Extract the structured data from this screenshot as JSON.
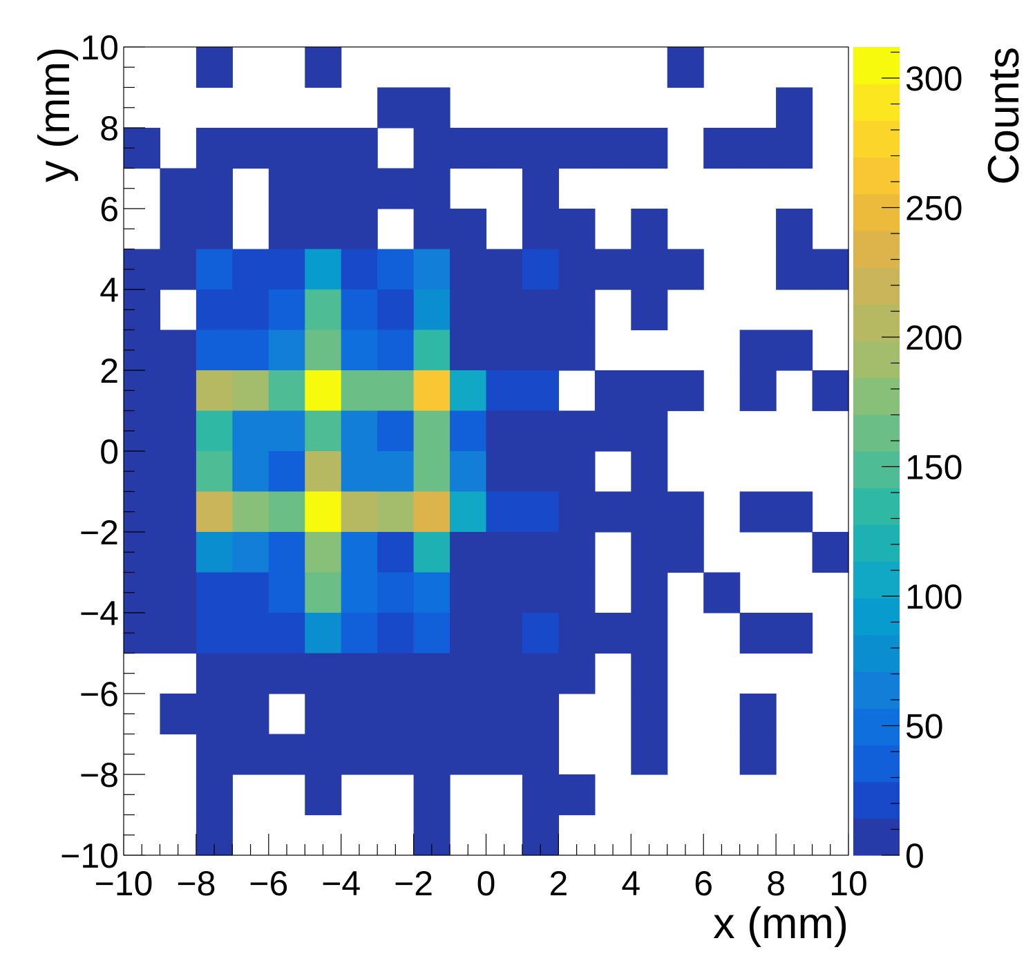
{
  "chart_data": {
    "type": "heatmap",
    "title": "",
    "xlabel": "x (mm)",
    "ylabel": "y (mm)",
    "zlabel": "Counts",
    "xlim": [
      -10,
      10
    ],
    "ylim": [
      -10,
      10
    ],
    "zlim": [
      0,
      312
    ],
    "x_bin_edges": [
      -10,
      -9,
      -8,
      -7,
      -6,
      -5,
      -4,
      -3,
      -2,
      -1,
      0,
      1,
      2,
      3,
      4,
      5,
      6,
      7,
      8,
      9,
      10
    ],
    "y_bin_edges": [
      -10,
      -9,
      -8,
      -7,
      -6,
      -5,
      -4,
      -3,
      -2,
      -1,
      0,
      1,
      2,
      3,
      4,
      5,
      6,
      7,
      8,
      9,
      10
    ],
    "x_ticks": [
      {
        "value": -10,
        "label": "−10"
      },
      {
        "value": -8,
        "label": "−8"
      },
      {
        "value": -6,
        "label": "−6"
      },
      {
        "value": -4,
        "label": "−4"
      },
      {
        "value": -2,
        "label": "−2"
      },
      {
        "value": 0,
        "label": "0"
      },
      {
        "value": 2,
        "label": "2"
      },
      {
        "value": 4,
        "label": "4"
      },
      {
        "value": 6,
        "label": "6"
      },
      {
        "value": 8,
        "label": "8"
      },
      {
        "value": 10,
        "label": "10"
      }
    ],
    "y_ticks": [
      {
        "value": -10,
        "label": "−10"
      },
      {
        "value": -8,
        "label": "−8"
      },
      {
        "value": -6,
        "label": "−6"
      },
      {
        "value": -4,
        "label": "−4"
      },
      {
        "value": -2,
        "label": "−2"
      },
      {
        "value": 0,
        "label": "0"
      },
      {
        "value": 2,
        "label": "2"
      },
      {
        "value": 4,
        "label": "4"
      },
      {
        "value": 6,
        "label": "6"
      },
      {
        "value": 8,
        "label": "8"
      },
      {
        "value": 10,
        "label": "10"
      }
    ],
    "z_ticks": [
      {
        "value": 0,
        "label": "0"
      },
      {
        "value": 50,
        "label": "50"
      },
      {
        "value": 100,
        "label": "100"
      },
      {
        "value": 150,
        "label": "150"
      },
      {
        "value": 200,
        "label": "200"
      },
      {
        "value": 250,
        "label": "250"
      },
      {
        "value": 300,
        "label": "300"
      }
    ],
    "values_rows_top_to_bottom": [
      [
        0,
        0,
        5,
        0,
        0,
        5,
        0,
        0,
        0,
        0,
        0,
        0,
        0,
        0,
        0,
        5,
        0,
        0,
        0,
        0
      ],
      [
        0,
        0,
        0,
        0,
        0,
        0,
        0,
        5,
        5,
        0,
        0,
        0,
        0,
        0,
        0,
        0,
        0,
        0,
        5,
        0
      ],
      [
        5,
        0,
        5,
        5,
        5,
        5,
        5,
        0,
        5,
        5,
        5,
        5,
        5,
        5,
        5,
        0,
        5,
        5,
        5,
        0
      ],
      [
        0,
        5,
        5,
        0,
        5,
        5,
        5,
        5,
        5,
        0,
        0,
        5,
        0,
        0,
        0,
        0,
        0,
        0,
        0,
        0
      ],
      [
        0,
        5,
        5,
        0,
        5,
        5,
        5,
        0,
        5,
        5,
        0,
        5,
        5,
        0,
        5,
        0,
        0,
        0,
        5,
        0
      ],
      [
        5,
        5,
        40,
        25,
        25,
        90,
        25,
        40,
        60,
        5,
        5,
        25,
        5,
        5,
        5,
        5,
        0,
        0,
        5,
        5
      ],
      [
        5,
        0,
        25,
        25,
        40,
        150,
        40,
        25,
        75,
        5,
        5,
        5,
        5,
        0,
        5,
        0,
        0,
        0,
        0,
        0
      ],
      [
        5,
        5,
        40,
        40,
        60,
        170,
        55,
        40,
        140,
        5,
        5,
        5,
        5,
        0,
        0,
        0,
        0,
        5,
        5,
        0
      ],
      [
        5,
        5,
        205,
        185,
        150,
        305,
        165,
        165,
        260,
        110,
        25,
        25,
        0,
        5,
        5,
        5,
        0,
        5,
        0,
        5
      ],
      [
        5,
        5,
        135,
        60,
        60,
        150,
        70,
        40,
        165,
        40,
        5,
        5,
        5,
        5,
        5,
        0,
        0,
        0,
        0,
        0
      ],
      [
        5,
        5,
        150,
        60,
        40,
        205,
        60,
        60,
        165,
        60,
        5,
        5,
        5,
        0,
        5,
        0,
        0,
        0,
        0,
        0
      ],
      [
        5,
        5,
        215,
        180,
        165,
        312,
        200,
        185,
        240,
        105,
        25,
        25,
        5,
        5,
        5,
        5,
        0,
        5,
        5,
        0
      ],
      [
        5,
        5,
        75,
        60,
        40,
        180,
        55,
        25,
        120,
        5,
        5,
        5,
        5,
        0,
        5,
        5,
        0,
        0,
        0,
        5
      ],
      [
        5,
        5,
        25,
        25,
        40,
        170,
        55,
        40,
        55,
        5,
        5,
        5,
        5,
        0,
        5,
        0,
        5,
        0,
        0,
        0
      ],
      [
        5,
        5,
        25,
        25,
        25,
        85,
        40,
        25,
        40,
        5,
        5,
        25,
        5,
        5,
        5,
        0,
        0,
        5,
        5,
        0
      ],
      [
        0,
        0,
        5,
        5,
        5,
        5,
        5,
        5,
        5,
        5,
        5,
        5,
        5,
        0,
        5,
        0,
        0,
        0,
        0,
        0
      ],
      [
        0,
        5,
        5,
        5,
        0,
        5,
        5,
        5,
        5,
        5,
        5,
        5,
        0,
        0,
        5,
        0,
        0,
        5,
        0,
        0
      ],
      [
        0,
        0,
        5,
        5,
        5,
        5,
        5,
        5,
        5,
        5,
        5,
        5,
        0,
        0,
        5,
        0,
        0,
        5,
        0,
        0
      ],
      [
        0,
        0,
        5,
        0,
        0,
        5,
        0,
        0,
        5,
        0,
        0,
        5,
        5,
        0,
        0,
        0,
        0,
        0,
        0,
        0
      ],
      [
        0,
        0,
        5,
        0,
        0,
        0,
        0,
        0,
        5,
        0,
        0,
        5,
        0,
        0,
        0,
        0,
        0,
        0,
        0,
        0
      ]
    ],
    "empty_bins": "white",
    "palette": [
      "#273ba8",
      "#1849c9",
      "#1160da",
      "#0f6fdc",
      "#127ed7",
      "#0a8ecf",
      "#089bcd",
      "#10a8c5",
      "#1eb1b3",
      "#2fb8a4",
      "#4ebc94",
      "#6bbe85",
      "#88c07a",
      "#a3bd6d",
      "#b7b962",
      "#cab55a",
      "#ddb44c",
      "#ecbb3c",
      "#f8c733",
      "#fcd52a",
      "#fbe620",
      "#f8fa0d"
    ],
    "grid": false,
    "colorbar_position": "right"
  }
}
